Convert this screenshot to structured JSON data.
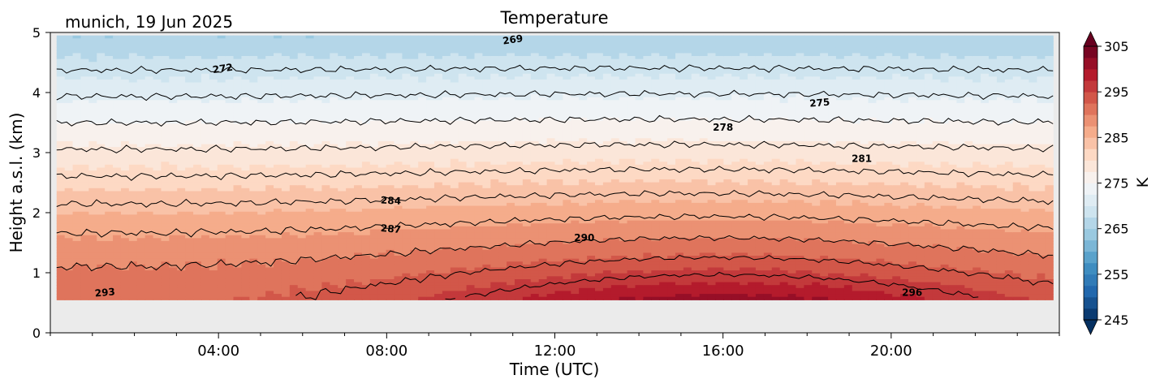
{
  "chart_data": {
    "type": "heatmap",
    "title": "Temperature",
    "subtitle": "munich, 19 Jun 2025",
    "xlabel": "Time (UTC)",
    "ylabel": "Height a.s.l. (km)",
    "xlim": [
      0,
      24
    ],
    "ylim": [
      0,
      5
    ],
    "x_tick_values": [
      4,
      8,
      12,
      16,
      20
    ],
    "x_tick_labels": [
      "04:00",
      "08:00",
      "12:00",
      "16:00",
      "20:00"
    ],
    "y_ticks": [
      0,
      1,
      2,
      3,
      4,
      5
    ],
    "data_bottom_km": 0.55,
    "data_top_km": 4.95,
    "data_start_h": 0.15,
    "data_end_h": 23.85,
    "colorbar": {
      "label": "K",
      "min": 245,
      "max": 305,
      "step": 2.5,
      "extend": "both",
      "ticks": [
        245,
        255,
        265,
        275,
        285,
        295,
        305
      ]
    },
    "contour_levels": [
      269,
      272,
      275,
      278,
      281,
      284,
      287,
      290,
      293,
      296
    ],
    "contour_labels": [
      {
        "text": "269",
        "x": 11.0,
        "y": 4.88,
        "rot": 8
      },
      {
        "text": "272",
        "x": 4.1,
        "y": 4.4,
        "rot": 8
      },
      {
        "text": "275",
        "x": 18.3,
        "y": 3.83,
        "rot": 5
      },
      {
        "text": "278",
        "x": 16.0,
        "y": 3.42,
        "rot": 0
      },
      {
        "text": "281",
        "x": 19.3,
        "y": 2.9,
        "rot": 0
      },
      {
        "text": "284",
        "x": 8.1,
        "y": 2.2,
        "rot": -3
      },
      {
        "text": "287",
        "x": 8.1,
        "y": 1.73,
        "rot": -5
      },
      {
        "text": "290",
        "x": 12.7,
        "y": 1.58,
        "rot": 0
      },
      {
        "text": "293",
        "x": 1.3,
        "y": 0.67,
        "rot": 5
      },
      {
        "text": "296",
        "x": 20.5,
        "y": 0.67,
        "rot": 0
      }
    ],
    "background_color": "#ebebeb"
  }
}
